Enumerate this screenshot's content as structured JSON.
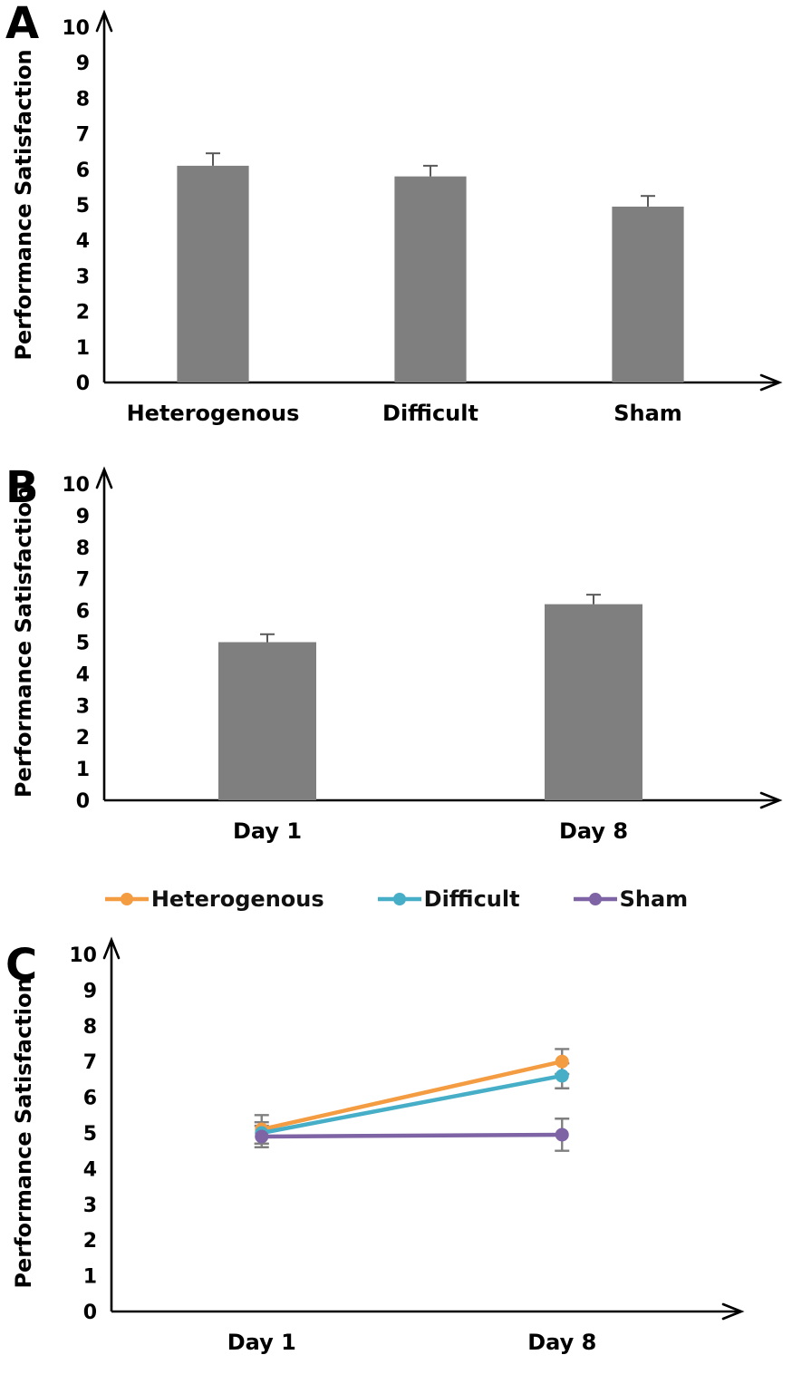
{
  "figure": {
    "type": "multi-panel-scientific-figure",
    "panel_count": 3
  },
  "chart_data": [
    {
      "panel": "A",
      "type": "bar",
      "title": "",
      "xlabel": "",
      "ylabel": "Performance Satisfaction",
      "categories": [
        "Heterogenous",
        "Difficult",
        "Sham"
      ],
      "values": [
        6.1,
        5.8,
        4.95
      ],
      "errors": [
        0.35,
        0.3,
        0.3
      ],
      "ylim": [
        0,
        10
      ],
      "yticks": [
        0,
        1,
        2,
        3,
        4,
        5,
        6,
        7,
        8,
        9,
        10
      ],
      "bar_color": "#7F7F7F",
      "error_color": "#595959",
      "grid": false,
      "legend_position": "none"
    },
    {
      "panel": "B",
      "type": "bar",
      "title": "",
      "xlabel": "",
      "ylabel": "Performance Satisfaction",
      "categories": [
        "Day 1",
        "Day 8"
      ],
      "values": [
        5.0,
        6.2
      ],
      "errors": [
        0.25,
        0.3
      ],
      "ylim": [
        0,
        10
      ],
      "yticks": [
        0,
        1,
        2,
        3,
        4,
        5,
        6,
        7,
        8,
        9,
        10
      ],
      "bar_color": "#7F7F7F",
      "error_color": "#595959",
      "grid": false,
      "legend_position": "none"
    },
    {
      "panel": "C",
      "type": "line",
      "title": "",
      "xlabel": "",
      "ylabel": "Performance Satisfaction",
      "categories": [
        "Day 1",
        "Day 8"
      ],
      "series": [
        {
          "name": "Heterogenous",
          "values": [
            5.1,
            7.0
          ],
          "errors": [
            0.4,
            0.35
          ],
          "color": "#F49C42"
        },
        {
          "name": "Difficult",
          "values": [
            5.0,
            6.6
          ],
          "errors": [
            0.3,
            0.35
          ],
          "color": "#46AEC7"
        },
        {
          "name": "Sham",
          "values": [
            4.9,
            4.95
          ],
          "errors": [
            0.3,
            0.45
          ],
          "color": "#7E63A5"
        }
      ],
      "ylim": [
        0,
        10
      ],
      "yticks": [
        0,
        1,
        2,
        3,
        4,
        5,
        6,
        7,
        8,
        9,
        10
      ],
      "error_color": "#7F7F7F",
      "grid": false,
      "legend_position": "top"
    }
  ]
}
